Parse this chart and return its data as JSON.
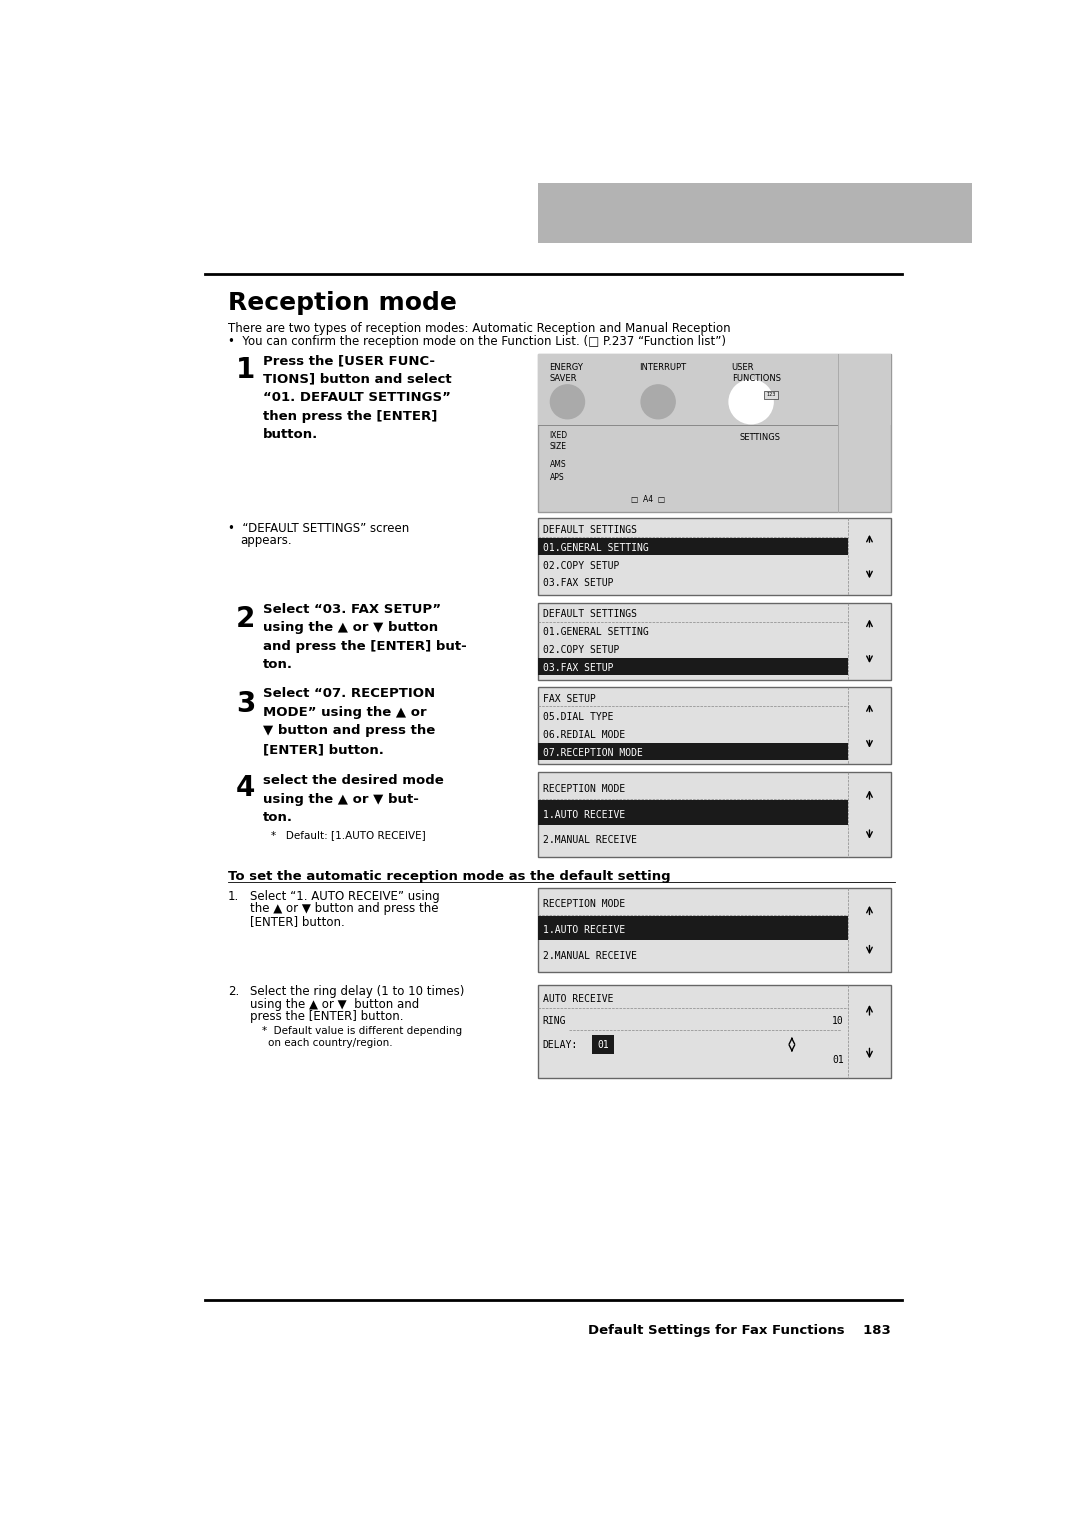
{
  "page_title": "Reception mode",
  "footer_text": "Default Settings for Fax Functions    183",
  "intro_line1": "There are two types of reception modes: Automatic Reception and Manual Reception",
  "intro_line2": "•  You can confirm the reception mode on the Function List. (□ P.237 “Function list”)",
  "colors": {
    "background": "#ffffff",
    "header_gray": "#b3b3b3",
    "screen_bg": "#e0e0e0",
    "screen_highlight_bg": "#1a1a1a",
    "screen_highlight_fg": "#ffffff",
    "screen_text": "#000000",
    "border_color": "#555555"
  },
  "screens": [
    {
      "id": "s1",
      "title": "DEFAULT SETTINGS",
      "items": [
        "01.GENERAL SETTING",
        "02.COPY SETUP",
        "03.FAX SETUP"
      ],
      "highlighted": 0
    },
    {
      "id": "s2",
      "title": "DEFAULT SETTINGS",
      "items": [
        "01.GENERAL SETTING",
        "02.COPY SETUP",
        "03.FAX SETUP"
      ],
      "highlighted": 2
    },
    {
      "id": "s3",
      "title": "FAX SETUP",
      "items": [
        "05.DIAL TYPE",
        "06.REDIAL MODE",
        "07.RECEPTION MODE"
      ],
      "highlighted": 2
    },
    {
      "id": "s4",
      "title": "RECEPTION MODE",
      "items": [
        "1.AUTO RECEIVE",
        "2.MANUAL RECEIVE"
      ],
      "highlighted": 0
    },
    {
      "id": "s5",
      "title": "RECEPTION MODE",
      "items": [
        "1.AUTO RECEIVE",
        "2.MANUAL RECEIVE"
      ],
      "highlighted": 0
    }
  ]
}
